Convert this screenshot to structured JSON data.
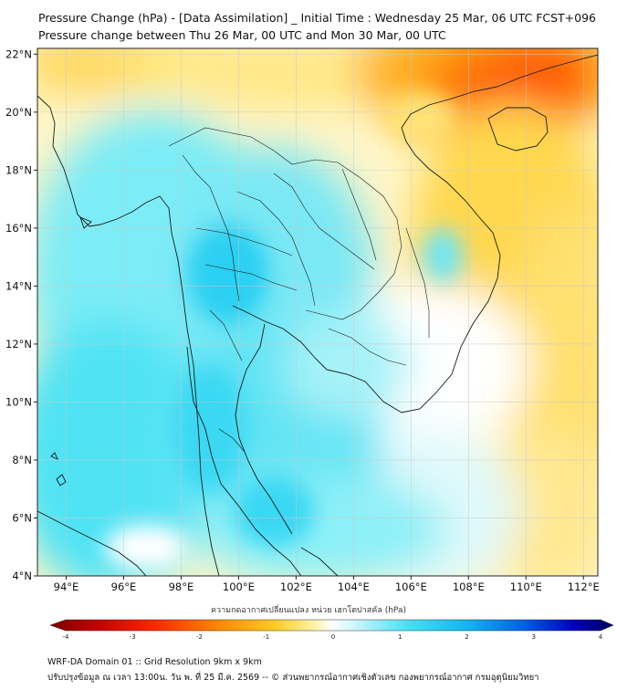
{
  "title": {
    "line1": "Pressure Change (hPa) - [Data Assimilation] _ Initial Time : Wednesday 25 Mar, 06 UTC FCST+096",
    "line2": "Pressure change between Thu 26 Mar, 00 UTC and Mon 30 Mar, 00 UTC"
  },
  "map": {
    "lon_ticks": [
      "94°E",
      "96°E",
      "98°E",
      "100°E",
      "102°E",
      "104°E",
      "106°E",
      "108°E",
      "110°E",
      "112°E"
    ],
    "lat_ticks": [
      "22°N",
      "20°N",
      "18°N",
      "16°N",
      "14°N",
      "12°N",
      "10°N",
      "8°N",
      "6°N",
      "4°N"
    ],
    "lon_values": [
      94,
      96,
      98,
      100,
      102,
      104,
      106,
      108,
      110,
      112
    ],
    "lat_values": [
      22,
      20,
      18,
      16,
      14,
      12,
      10,
      8,
      6,
      4
    ],
    "lon_range": [
      93,
      112.5
    ],
    "lat_range": [
      4,
      22.2
    ],
    "grid": true
  },
  "colorbar": {
    "title": "ความกดอากาศเปลี่ยนแปลง หน่วย เฮกโตปาสคัล (hPa)",
    "labels": [
      "-4",
      "-3",
      "-2",
      "-1",
      "0",
      "1",
      "2",
      "3",
      "4"
    ],
    "range": [
      -4,
      4
    ],
    "colors": [
      "#7a0000",
      "#d40000",
      "#ff2a00",
      "#ff7a00",
      "#ffbf00",
      "#ffe65a",
      "#fff4b0",
      "#ffffff",
      "#c8f5fb",
      "#3fe0f2",
      "#10b6f0",
      "#0060e8",
      "#0000c8",
      "#000070"
    ]
  },
  "footer": {
    "line1": "WRF-DA Domain 01 :: Grid Resolution 9km x 9km",
    "line2": "ปรับปรุงข้อมูล ณ เวลา 13:00น. วัน พ. ที่ 25 มี.ค. 2569 -- © ส่วนพยากรณ์อากาศเชิงตัวเลข กองพยากรณ์อากาศ กรมอุตุนิยมวิทยา"
  }
}
